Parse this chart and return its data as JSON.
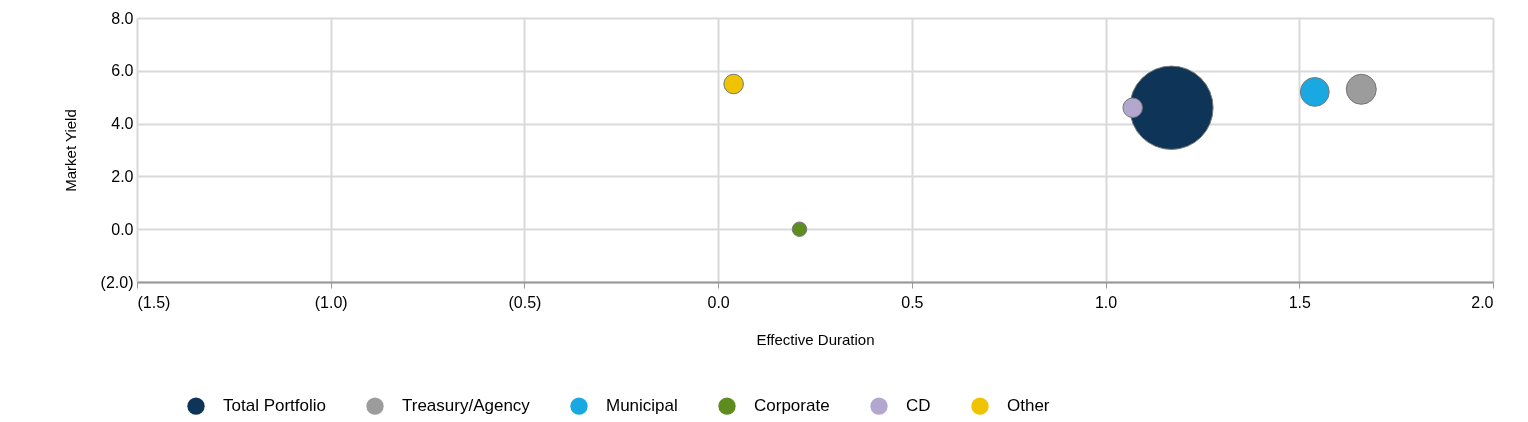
{
  "chart_data": {
    "type": "bubble",
    "xlabel": "Effective Duration",
    "ylabel": "Market Yield",
    "xlim": [
      -1.5,
      2.0
    ],
    "ylim": [
      -2.0,
      8.0
    ],
    "xticks": [
      {
        "value": -1.5,
        "label": "(1.5)"
      },
      {
        "value": -1.0,
        "label": "(1.0)"
      },
      {
        "value": -0.5,
        "label": "(0.5)"
      },
      {
        "value": 0,
        "label": "0.0"
      },
      {
        "value": 0.5,
        "label": "0.5"
      },
      {
        "value": 1.0,
        "label": "1.0"
      },
      {
        "value": 1.5,
        "label": "1.5"
      },
      {
        "value": 2.0,
        "label": "2.0"
      }
    ],
    "yticks": [
      {
        "value": -2.0,
        "label": "(2.0)"
      },
      {
        "value": 0,
        "label": "0.0"
      },
      {
        "value": 2.0,
        "label": "2.0"
      },
      {
        "value": 4.0,
        "label": "4.0"
      },
      {
        "value": 6.0,
        "label": "6.0"
      },
      {
        "value": 8.0,
        "label": "8.0"
      }
    ],
    "grid": true,
    "legend": "bottom",
    "series": [
      {
        "name": "Total Portfolio",
        "color": "#0e3458",
        "x": [
          1.17
        ],
        "values": [
          4.6
        ],
        "sizes": [
          1
        ]
      },
      {
        "name": "Treasury/Agency",
        "color": "#9c9c9c",
        "x": [
          1.66
        ],
        "values": [
          5.3
        ],
        "sizes": [
          0.13
        ]
      },
      {
        "name": "Municipal",
        "color": "#1aa8e2",
        "x": [
          1.54
        ],
        "values": [
          5.2
        ],
        "sizes": [
          0.12
        ]
      },
      {
        "name": "Corporate",
        "color": "#5e8c1f",
        "x": [
          0.21
        ],
        "values": [
          0.0
        ],
        "sizes": [
          0.03
        ]
      },
      {
        "name": "CD",
        "color": "#b4a7cf",
        "x": [
          1.07
        ],
        "values": [
          4.6
        ],
        "sizes": [
          0.055
        ]
      },
      {
        "name": "Other",
        "color": "#f0c300",
        "x": [
          0.04
        ],
        "values": [
          5.5
        ],
        "sizes": [
          0.055
        ]
      }
    ]
  }
}
